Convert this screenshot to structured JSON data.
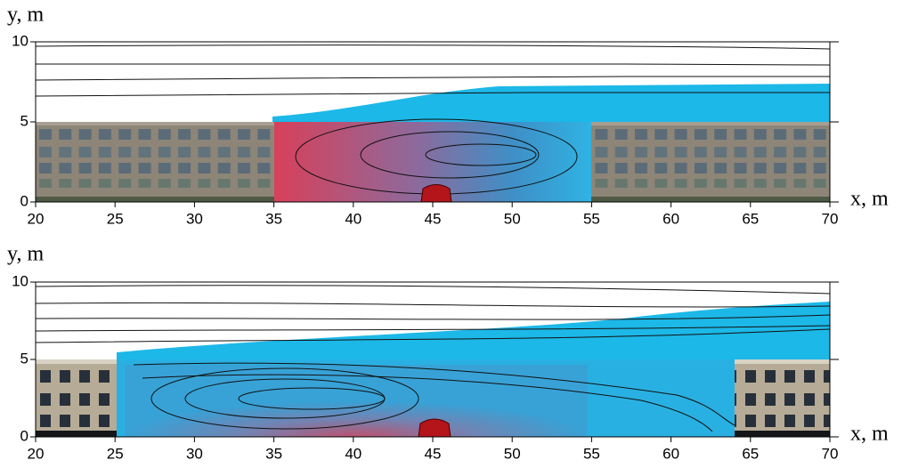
{
  "chart_data": [
    {
      "type": "contour",
      "xlabel": "x, m",
      "ylabel": "y, m",
      "xlim": [
        20,
        70
      ],
      "ylim": [
        0,
        10
      ],
      "xticks": [
        20,
        25,
        30,
        35,
        40,
        45,
        50,
        55,
        60,
        65,
        70
      ],
      "yticks": [
        0,
        5,
        10
      ]
    },
    {
      "type": "contour",
      "xlabel": "x, m",
      "ylabel": "y, m",
      "xlim": [
        20,
        70
      ],
      "ylim": [
        0,
        10
      ],
      "xticks": [
        20,
        25,
        30,
        35,
        40,
        45,
        50,
        55,
        60,
        65,
        70
      ],
      "yticks": [
        0,
        5,
        10
      ]
    }
  ]
}
